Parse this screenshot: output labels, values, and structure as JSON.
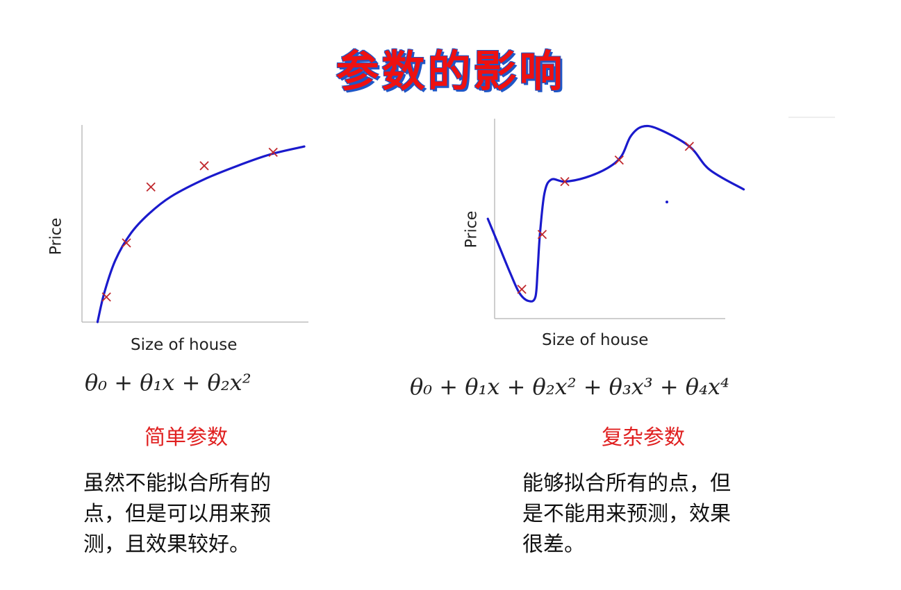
{
  "slide": {
    "title": "参数的影响"
  },
  "left": {
    "ylabel": "Price",
    "xlabel": "Size of house",
    "formula": "θ₀ + θ₁x + θ₂x²",
    "subtitle": "简单参数",
    "desc_lines": [
      "虽然不能拟合所有的",
      "点，但是可以用来预",
      "测，且效果较好。"
    ]
  },
  "right": {
    "ylabel": "Price",
    "xlabel": "Size of house",
    "formula": "θ₀ + θ₁x + θ₂x² + θ₃x³ + θ₄x⁴",
    "subtitle": "复杂参数",
    "desc_lines": [
      "能够拟合所有的点，但",
      "是不能用来预测，效果",
      "很差。"
    ]
  },
  "colors": {
    "title": "#ee1111",
    "title_outline": "#1f57c7",
    "curve": "#1a1acc",
    "marker": "#c0282d",
    "subtitle": "#e02020"
  },
  "chart_data": [
    {
      "type": "scatter",
      "title": "",
      "xlabel": "Size of house",
      "ylabel": "Price",
      "xlim": [
        0,
        10
      ],
      "ylim": [
        0,
        10
      ],
      "grid": false,
      "points": [
        [
          1.1,
          1.3
        ],
        [
          2.0,
          4.1
        ],
        [
          3.1,
          7.0
        ],
        [
          5.5,
          8.1
        ],
        [
          8.6,
          8.8
        ]
      ],
      "fit": {
        "label": "θ₀ + θ₁x + θ₂x²",
        "curve": [
          [
            0.7,
            0.0
          ],
          [
            1.0,
            1.5
          ],
          [
            1.5,
            3.2
          ],
          [
            2.2,
            4.6
          ],
          [
            3.0,
            5.6
          ],
          [
            4.0,
            6.5
          ],
          [
            5.5,
            7.4
          ],
          [
            7.0,
            8.1
          ],
          [
            8.5,
            8.7
          ],
          [
            10.0,
            9.1
          ]
        ]
      }
    },
    {
      "type": "scatter",
      "title": "",
      "xlabel": "Size of house",
      "ylabel": "Price",
      "xlim": [
        0,
        10
      ],
      "ylim": [
        0,
        10
      ],
      "grid": false,
      "points": [
        [
          1.2,
          1.5
        ],
        [
          2.1,
          4.3
        ],
        [
          3.1,
          7.0
        ],
        [
          5.5,
          8.1
        ],
        [
          8.6,
          8.8
        ]
      ],
      "fit": {
        "label": "θ₀ + θ₁x + θ₂x² + θ₃x³ + θ₄x⁴",
        "curve": [
          [
            -0.3,
            5.1
          ],
          [
            0.2,
            3.7
          ],
          [
            0.7,
            2.3
          ],
          [
            1.1,
            1.3
          ],
          [
            1.5,
            0.9
          ],
          [
            1.8,
            1.1
          ],
          [
            1.9,
            2.5
          ],
          [
            2.0,
            4.3
          ],
          [
            2.2,
            6.4
          ],
          [
            2.5,
            7.1
          ],
          [
            3.1,
            7.0
          ],
          [
            4.0,
            7.2
          ],
          [
            5.0,
            7.7
          ],
          [
            5.6,
            8.3
          ],
          [
            6.0,
            9.3
          ],
          [
            6.5,
            9.8
          ],
          [
            7.2,
            9.7
          ],
          [
            8.6,
            8.8
          ],
          [
            9.5,
            7.6
          ],
          [
            11.0,
            6.6
          ]
        ]
      }
    }
  ]
}
